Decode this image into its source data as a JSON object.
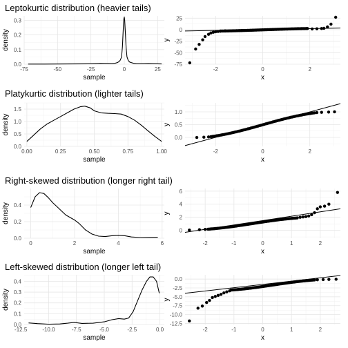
{
  "chart_data": [
    {
      "id": "lepto_density",
      "type": "line",
      "title": "Leptokurtic distribution (heavier tails)",
      "xlabel": "sample",
      "ylabel": "density",
      "xlim": [
        -75,
        30
      ],
      "ylim": [
        0,
        0.33
      ],
      "xticks": [
        -75,
        -50,
        -25,
        0,
        25
      ],
      "xtick_labels": [
        "-75",
        "-50",
        "-25",
        "0",
        "25"
      ],
      "yticks": [
        0,
        0.1,
        0.2,
        0.3
      ],
      "ytick_labels": [
        "0.0",
        "0.1",
        "0.2",
        "0.3"
      ],
      "grid": true,
      "x": [
        -72,
        -60,
        -40,
        -25,
        -18,
        -12,
        -9,
        -7,
        -5,
        -4,
        -3,
        -2,
        -1.4,
        -0.8,
        -0.3,
        0,
        0.3,
        0.8,
        1.4,
        2,
        3,
        4,
        5,
        7,
        9,
        12,
        18,
        28
      ],
      "y": [
        0.001,
        0.001,
        0.002,
        0.003,
        0.006,
        0.005,
        0.004,
        0.006,
        0.012,
        0.018,
        0.028,
        0.05,
        0.12,
        0.24,
        0.31,
        0.322,
        0.3,
        0.22,
        0.11,
        0.05,
        0.025,
        0.015,
        0.012,
        0.006,
        0.003,
        0.003,
        0.004,
        0.002
      ]
    },
    {
      "id": "lepto_qq",
      "type": "scatter",
      "xlabel": "x",
      "ylabel": "y",
      "xlim": [
        -3.3,
        3.3
      ],
      "ylim": [
        -75,
        30
      ],
      "xticks": [
        -2,
        0,
        2
      ],
      "xtick_labels": [
        "-2",
        "0",
        "2"
      ],
      "yticks": [
        -75,
        -50,
        -25,
        0,
        25
      ],
      "ytick_labels": [
        "-75",
        "-50",
        "-25",
        "0",
        "25"
      ],
      "grid": true,
      "qq_points": [
        [
          -3.1,
          -72
        ],
        [
          -2.85,
          -42
        ],
        [
          -2.7,
          -32
        ],
        [
          -2.55,
          -22
        ],
        [
          -2.45,
          -15
        ],
        [
          -2.3,
          -10
        ],
        [
          -2.2,
          -7
        ],
        [
          -2.1,
          -5.5
        ],
        [
          -2.0,
          -4.5
        ],
        [
          -1.9,
          -3.8
        ],
        [
          -1.8,
          -3.2
        ],
        [
          -1.6,
          -2.6
        ],
        [
          2.1,
          1.6
        ],
        [
          2.3,
          2.0
        ],
        [
          2.5,
          2.5
        ],
        [
          2.6,
          3.0
        ],
        [
          2.75,
          6
        ],
        [
          2.9,
          12
        ],
        [
          3.1,
          27
        ]
      ],
      "qq_band": [
        -1.8,
        1.9
      ],
      "qq_band_y": [
        -3,
        2.5
      ],
      "line": {
        "x": [
          -3.3,
          3.3
        ],
        "y": [
          -2.8,
          3.5
        ]
      }
    },
    {
      "id": "platy_density",
      "type": "line",
      "title": "Platykurtic distribution (lighter tails)",
      "xlabel": "sample",
      "ylabel": "density",
      "xlim": [
        -0.02,
        1.02
      ],
      "ylim": [
        0,
        1.75
      ],
      "xticks": [
        0,
        0.25,
        0.5,
        0.75,
        1.0
      ],
      "xtick_labels": [
        "0.00",
        "0.25",
        "0.50",
        "0.75",
        "1.00"
      ],
      "yticks": [
        0,
        0.5,
        1.0,
        1.5
      ],
      "ytick_labels": [
        "0.0",
        "0.5",
        "1.0",
        "1.5"
      ],
      "grid": true,
      "x": [
        0,
        0.05,
        0.1,
        0.15,
        0.2,
        0.25,
        0.3,
        0.35,
        0.4,
        0.43,
        0.47,
        0.5,
        0.55,
        0.6,
        0.65,
        0.7,
        0.75,
        0.8,
        0.85,
        0.9,
        0.95,
        1.0
      ],
      "y": [
        0.2,
        0.45,
        0.7,
        0.9,
        1.05,
        1.2,
        1.35,
        1.5,
        1.6,
        1.62,
        1.55,
        1.43,
        1.35,
        1.33,
        1.32,
        1.3,
        1.2,
        1.05,
        0.85,
        0.62,
        0.4,
        0.2
      ]
    },
    {
      "id": "platy_qq",
      "type": "scatter",
      "xlabel": "x",
      "ylabel": "y",
      "xlim": [
        -3.3,
        3.3
      ],
      "ylim": [
        -0.35,
        1.35
      ],
      "xticks": [
        -2,
        0,
        2
      ],
      "xtick_labels": [
        "-2",
        "0",
        "2"
      ],
      "yticks": [
        0,
        0.5,
        1.0
      ],
      "ytick_labels": [
        "0.0",
        "0.5",
        "1.0"
      ],
      "grid": true,
      "qq_points": [
        [
          -2.8,
          0.0
        ],
        [
          -2.5,
          0.01
        ],
        [
          -2.3,
          0.02
        ],
        [
          2.3,
          0.97
        ],
        [
          2.5,
          0.98
        ],
        [
          2.8,
          0.99
        ],
        [
          3.05,
          1.0
        ]
      ],
      "qq_band": [
        -2.2,
        2.2
      ],
      "qq_band_y": [
        0.03,
        0.96
      ],
      "line": {
        "x": [
          -3.3,
          3.3
        ],
        "y": [
          -0.32,
          1.32
        ]
      }
    },
    {
      "id": "right_density",
      "type": "line",
      "title": "Right-skewed distribution (longer right tail)",
      "xlabel": "sample",
      "ylabel": "density",
      "xlim": [
        -0.3,
        6.1
      ],
      "ylim": [
        0,
        0.6
      ],
      "xticks": [
        0,
        2,
        4,
        6
      ],
      "xtick_labels": [
        "0",
        "2",
        "4",
        "6"
      ],
      "yticks": [
        0,
        0.2,
        0.4
      ],
      "ytick_labels": [
        "0.0",
        "0.2",
        "0.4"
      ],
      "grid": true,
      "x": [
        0,
        0.2,
        0.4,
        0.6,
        0.8,
        1.0,
        1.2,
        1.4,
        1.6,
        1.8,
        2.0,
        2.2,
        2.5,
        2.8,
        3.1,
        3.4,
        3.7,
        4.0,
        4.3,
        4.6,
        5.0,
        5.4,
        5.8
      ],
      "y": [
        0.37,
        0.5,
        0.55,
        0.54,
        0.49,
        0.43,
        0.38,
        0.33,
        0.28,
        0.25,
        0.22,
        0.18,
        0.1,
        0.05,
        0.025,
        0.02,
        0.03,
        0.035,
        0.03,
        0.015,
        0.008,
        0.01,
        0.012
      ]
    },
    {
      "id": "right_qq",
      "type": "scatter",
      "xlabel": "x",
      "ylabel": "y",
      "xlim": [
        -2.7,
        2.7
      ],
      "ylim": [
        -1.2,
        6.4
      ],
      "xticks": [
        -2,
        -1,
        0,
        1,
        2
      ],
      "xtick_labels": [
        "-2",
        "-1",
        "0",
        "1",
        "2"
      ],
      "yticks": [
        0,
        2,
        4,
        6
      ],
      "ytick_labels": [
        "0",
        "2",
        "4",
        "6"
      ],
      "grid": true,
      "qq_points": [
        [
          -2.55,
          0.05
        ],
        [
          -2.2,
          0.1
        ],
        [
          -2.0,
          0.15
        ],
        [
          1.3,
          2.0
        ],
        [
          1.4,
          2.05
        ],
        [
          1.5,
          2.1
        ],
        [
          1.6,
          2.2
        ],
        [
          1.7,
          2.4
        ],
        [
          1.8,
          2.7
        ],
        [
          1.9,
          3.3
        ],
        [
          2.0,
          3.6
        ],
        [
          2.15,
          3.7
        ],
        [
          2.3,
          4.0
        ],
        [
          2.6,
          5.8
        ]
      ],
      "qq_band": [
        -1.9,
        1.2
      ],
      "qq_band_y": [
        0.18,
        1.9
      ],
      "line": {
        "x": [
          -2.7,
          2.7
        ],
        "y": [
          -0.3,
          3.3
        ]
      }
    },
    {
      "id": "left_density",
      "type": "line",
      "title": "Left-skewed distribution (longer left tail)",
      "xlabel": "sample",
      "ylabel": "density",
      "xlim": [
        -12.2,
        0.4
      ],
      "ylim": [
        0,
        0.46
      ],
      "xticks": [
        -12.5,
        -10,
        -7.5,
        -5,
        -2.5,
        0
      ],
      "xtick_labels": [
        "-12.5",
        "-10.0",
        "-7.5",
        "-5.0",
        "-2.5",
        "0.0"
      ],
      "yticks": [
        0,
        0.1,
        0.2,
        0.3,
        0.4
      ],
      "ytick_labels": [
        "0.0",
        "0.1",
        "0.2",
        "0.3",
        "0.4"
      ],
      "grid": true,
      "x": [
        -11.8,
        -11,
        -10,
        -9,
        -8.3,
        -7.7,
        -7,
        -6,
        -5,
        -4.3,
        -3.7,
        -3.2,
        -2.8,
        -2.4,
        -2.0,
        -1.6,
        -1.2,
        -0.9,
        -0.6,
        -0.3,
        -0.05
      ],
      "y": [
        0.015,
        0.008,
        0.003,
        0.005,
        0.012,
        0.02,
        0.01,
        0.012,
        0.025,
        0.045,
        0.055,
        0.05,
        0.06,
        0.12,
        0.22,
        0.32,
        0.4,
        0.44,
        0.44,
        0.4,
        0.29
      ]
    },
    {
      "id": "left_qq",
      "type": "scatter",
      "xlabel": "x",
      "ylabel": "y",
      "xlim": [
        -2.7,
        2.7
      ],
      "ylim": [
        -12.8,
        1.2
      ],
      "xticks": [
        -2,
        -1,
        0,
        1,
        2
      ],
      "xtick_labels": [
        "-2",
        "-1",
        "0",
        "1",
        "2"
      ],
      "yticks": [
        -12.5,
        -10,
        -7.5,
        -5,
        -2.5,
        0
      ],
      "ytick_labels": [
        "-12.5",
        "-10.0",
        "-7.5",
        "-5.0",
        "-2.5",
        "0.0"
      ],
      "grid": true,
      "qq_points": [
        [
          -2.55,
          -11.8
        ],
        [
          -2.25,
          -8.2
        ],
        [
          -2.1,
          -7.6
        ],
        [
          -1.95,
          -6.6
        ],
        [
          -1.85,
          -6.0
        ],
        [
          -1.75,
          -5.2
        ],
        [
          -1.65,
          -4.9
        ],
        [
          -1.55,
          -4.6
        ],
        [
          -1.45,
          -4.3
        ],
        [
          -1.35,
          -3.9
        ],
        [
          -1.25,
          -3.6
        ],
        [
          -1.15,
          -3.3
        ],
        [
          1.9,
          -0.2
        ],
        [
          2.1,
          -0.15
        ],
        [
          2.3,
          -0.1
        ],
        [
          2.55,
          -0.05
        ]
      ],
      "qq_band": [
        -1.1,
        1.8
      ],
      "qq_band_y": [
        -3.1,
        -0.25
      ],
      "line": {
        "x": [
          -2.7,
          2.7
        ],
        "y": [
          -4.0,
          1.0
        ]
      }
    }
  ]
}
